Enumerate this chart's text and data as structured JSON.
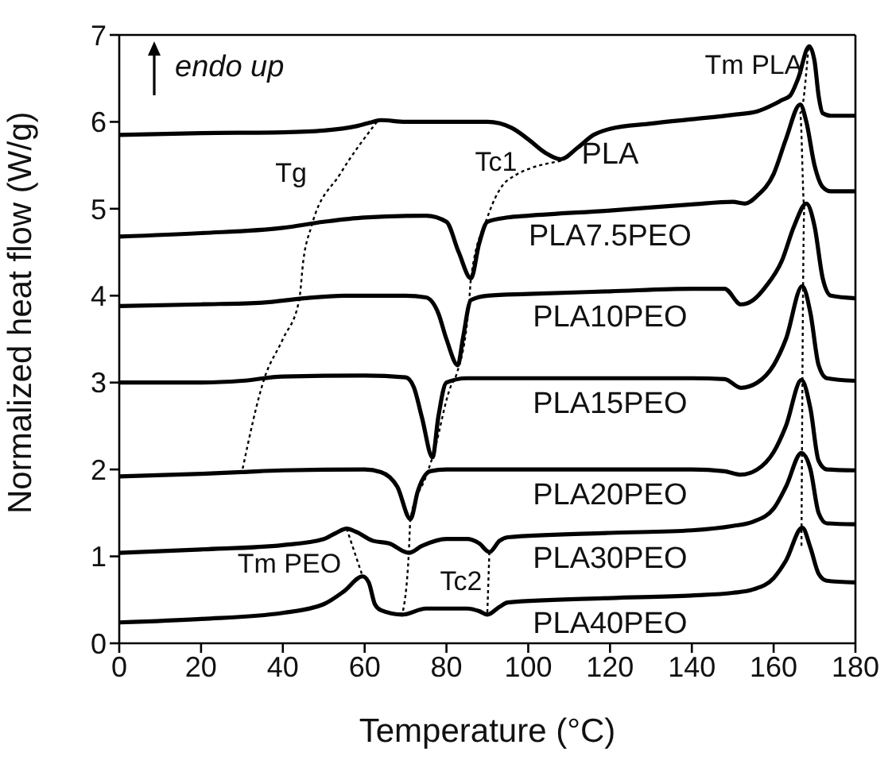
{
  "chart_data": {
    "type": "line",
    "xlabel": "Temperature (°C)",
    "ylabel": "Normalized heat flow (W/g)",
    "xlim": [
      0,
      180
    ],
    "xticks": [
      0,
      20,
      40,
      60,
      80,
      100,
      120,
      140,
      160,
      180
    ],
    "ylim": [
      0,
      7
    ],
    "yticks": [
      0,
      1,
      2,
      3,
      4,
      5,
      6,
      7
    ],
    "grid": false,
    "legend": false,
    "marker": "none",
    "line_style": "solid",
    "annotations": [
      "endo up",
      "Tg",
      "Tc1",
      "Tm PLA",
      "Tm PEO",
      "Tc2"
    ],
    "series": [
      {
        "name": "PLA",
        "color": "#000000",
        "x": [
          0,
          20,
          40,
          50,
          58,
          62,
          64,
          70,
          90,
          96,
          100,
          104,
          108,
          112,
          116,
          120,
          130,
          140,
          150,
          156,
          160,
          162,
          164,
          166,
          168.7,
          170,
          171,
          172,
          174,
          180
        ],
        "values": [
          5.85,
          5.87,
          5.88,
          5.9,
          5.95,
          6.0,
          6.02,
          6.0,
          6.0,
          5.93,
          5.8,
          5.65,
          5.57,
          5.7,
          5.85,
          5.92,
          5.98,
          6.03,
          6.08,
          6.12,
          6.2,
          6.25,
          6.3,
          6.5,
          6.87,
          6.7,
          6.3,
          6.1,
          6.07,
          6.07
        ]
      },
      {
        "name": "PLA7.5PEO",
        "color": "#000000",
        "x": [
          0,
          20,
          40,
          50,
          60,
          75,
          80,
          83,
          86,
          88,
          90,
          95,
          100,
          120,
          140,
          150,
          153,
          156,
          160,
          163,
          166.5,
          168,
          170,
          172,
          174,
          180
        ],
        "values": [
          4.68,
          4.72,
          4.78,
          4.85,
          4.9,
          4.92,
          4.85,
          4.5,
          4.2,
          4.6,
          4.85,
          4.9,
          4.92,
          4.98,
          5.05,
          5.08,
          5.06,
          5.15,
          5.4,
          5.8,
          6.2,
          6.0,
          5.5,
          5.25,
          5.2,
          5.2
        ]
      },
      {
        "name": "PLA10PEO",
        "color": "#000000",
        "x": [
          0,
          20,
          35,
          45,
          55,
          70,
          75,
          78,
          80,
          82.8,
          84,
          86,
          90,
          100,
          120,
          140,
          148,
          152,
          155,
          158,
          162,
          165,
          168,
          170,
          172,
          174,
          180
        ],
        "values": [
          3.88,
          3.9,
          3.92,
          3.97,
          4.0,
          4.0,
          3.98,
          3.8,
          3.5,
          3.2,
          3.5,
          3.95,
          4.0,
          4.02,
          4.05,
          4.08,
          4.08,
          3.9,
          3.95,
          4.1,
          4.4,
          4.8,
          5.06,
          4.8,
          4.2,
          4.0,
          3.97
        ]
      },
      {
        "name": "PLA15PEO",
        "color": "#000000",
        "x": [
          0,
          20,
          30,
          40,
          60,
          70,
          72,
          74,
          76.6,
          78,
          80,
          85,
          100,
          120,
          140,
          148,
          152,
          156,
          160,
          163,
          167,
          169,
          171,
          173,
          180
        ],
        "values": [
          3.0,
          3.0,
          3.02,
          3.07,
          3.08,
          3.06,
          2.95,
          2.6,
          2.14,
          2.6,
          3.0,
          3.05,
          3.05,
          3.05,
          3.05,
          3.04,
          2.94,
          3.0,
          3.2,
          3.5,
          4.11,
          3.8,
          3.2,
          3.05,
          3.02
        ]
      },
      {
        "name": "PLA20PEO",
        "color": "#000000",
        "x": [
          0,
          20,
          30,
          40,
          60,
          64,
          68,
          71.2,
          73,
          76,
          80,
          100,
          120,
          140,
          148,
          152,
          156,
          160,
          163,
          166.8,
          169,
          171,
          173,
          180
        ],
        "values": [
          1.92,
          1.95,
          1.97,
          1.99,
          2.0,
          1.97,
          1.8,
          1.43,
          1.75,
          1.98,
          2.0,
          2.0,
          2.0,
          2.0,
          1.98,
          1.94,
          2.0,
          2.2,
          2.5,
          3.03,
          2.7,
          2.1,
          2.0,
          1.99
        ]
      },
      {
        "name": "PLA30PEO",
        "color": "#000000",
        "x": [
          0,
          20,
          40,
          50,
          53,
          55.6,
          58,
          62,
          66,
          70.8,
          74,
          80,
          85,
          88,
          90.5,
          93,
          95,
          120,
          140,
          150,
          155,
          160,
          163,
          166.8,
          169,
          171,
          173,
          180
        ],
        "values": [
          1.04,
          1.08,
          1.13,
          1.2,
          1.27,
          1.32,
          1.28,
          1.18,
          1.15,
          1.04,
          1.12,
          1.2,
          1.2,
          1.15,
          1.05,
          1.18,
          1.22,
          1.27,
          1.3,
          1.35,
          1.4,
          1.55,
          1.8,
          2.19,
          2.0,
          1.5,
          1.38,
          1.37
        ]
      },
      {
        "name": "PLA40PEO",
        "color": "#000000",
        "x": [
          0,
          20,
          40,
          50,
          55,
          59.5,
          61,
          62.5,
          64,
          69.2,
          75,
          85,
          88,
          90,
          93,
          95,
          120,
          140,
          150,
          155,
          160,
          163,
          167,
          169,
          171,
          173,
          180
        ],
        "values": [
          0.24,
          0.28,
          0.35,
          0.45,
          0.6,
          0.77,
          0.7,
          0.45,
          0.38,
          0.33,
          0.4,
          0.4,
          0.37,
          0.33,
          0.42,
          0.47,
          0.52,
          0.55,
          0.58,
          0.62,
          0.75,
          0.95,
          1.33,
          1.1,
          0.8,
          0.72,
          0.7
        ]
      },
      {
        "color": "#000000",
        "line_style": "dotted",
        "x": [
          63,
          54,
          47,
          45,
          44,
          40,
          35.5,
          30
        ],
        "values": [
          6.0,
          5.4,
          4.8,
          4.4,
          3.95,
          3.5,
          3.05,
          1.97
        ]
      },
      {
        "color": "#000000",
        "line_style": "dotted",
        "x": [
          108,
          95,
          90,
          86,
          85.5,
          82.5,
          81,
          76.6,
          75,
          71.2,
          70.8,
          69.2
        ],
        "values": [
          5.55,
          5.33,
          4.9,
          4.2,
          3.9,
          3.1,
          2.95,
          2.14,
          1.92,
          1.43,
          1.04,
          0.33
        ]
      },
      {
        "color": "#000000",
        "line_style": "dotted",
        "x": [
          168.5,
          166.5,
          167.5,
          166.8
        ],
        "values": [
          6.85,
          6.1,
          5.0,
          1.1
        ]
      },
      {
        "color": "#000000",
        "line_style": "dotted",
        "x": [
          55.6,
          59.5
        ],
        "values": [
          1.32,
          0.77
        ]
      },
      {
        "color": "#000000",
        "line_style": "dotted",
        "x": [
          90.5,
          90
        ],
        "values": [
          1.05,
          0.35
        ]
      }
    ]
  }
}
